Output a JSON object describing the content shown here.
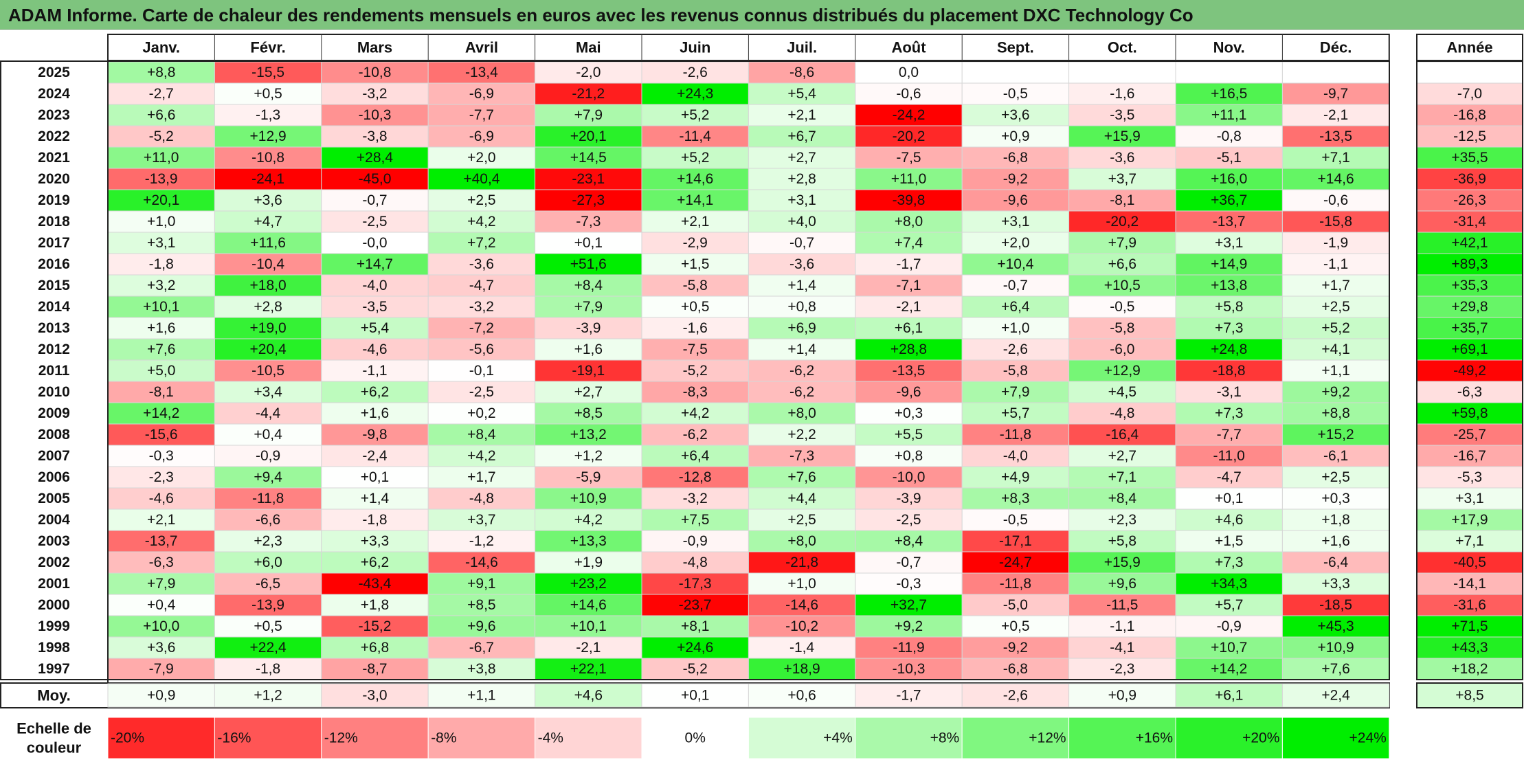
{
  "title": "ADAM Informe. Carte de chaleur des rendements mensuels en euros avec les revenus connus distribués du placement DXC Technology Co",
  "colors": {
    "title_bar": "#7ec47e",
    "negative_strong": "#ff0000",
    "neutral": "#ffffff",
    "positive_strong": "#00ee00"
  },
  "chart_data": {
    "type": "heatmap",
    "title": "ADAM Informe. Carte de chaleur des rendements mensuels en euros avec les revenus connus distribués du placement DXC Technology Co",
    "columns": [
      "Janv.",
      "Févr.",
      "Mars",
      "Avril",
      "Mai",
      "Juin",
      "Juil.",
      "Août",
      "Sept.",
      "Oct.",
      "Nov.",
      "Déc."
    ],
    "year_column_label": "Année",
    "rows": [
      {
        "year": "2025",
        "months": [
          "+8,8",
          "-15,5",
          "-10,8",
          "-13,4",
          "-2,0",
          "-2,6",
          "-8,6",
          "0,0",
          "",
          "",
          "",
          ""
        ],
        "annual": ""
      },
      {
        "year": "2024",
        "months": [
          "-2,7",
          "+0,5",
          "-3,2",
          "-6,9",
          "-21,2",
          "+24,3",
          "+5,4",
          "-0,6",
          "-0,5",
          "-1,6",
          "+16,5",
          "-9,7"
        ],
        "annual": "-7,0"
      },
      {
        "year": "2023",
        "months": [
          "+6,6",
          "-1,3",
          "-10,3",
          "-7,7",
          "+7,9",
          "+5,2",
          "+2,1",
          "-24,2",
          "+3,6",
          "-3,5",
          "+11,1",
          "-2,1"
        ],
        "annual": "-16,8"
      },
      {
        "year": "2022",
        "months": [
          "-5,2",
          "+12,9",
          "-3,8",
          "-6,9",
          "+20,1",
          "-11,4",
          "+6,7",
          "-20,2",
          "+0,9",
          "+15,9",
          "-0,8",
          "-13,5"
        ],
        "annual": "-12,5"
      },
      {
        "year": "2021",
        "months": [
          "+11,0",
          "-10,8",
          "+28,4",
          "+2,0",
          "+14,5",
          "+5,2",
          "+2,7",
          "-7,5",
          "-6,8",
          "-3,6",
          "-5,1",
          "+7,1"
        ],
        "annual": "+35,5"
      },
      {
        "year": "2020",
        "months": [
          "-13,9",
          "-24,1",
          "-45,0",
          "+40,4",
          "-23,1",
          "+14,6",
          "+2,8",
          "+11,0",
          "-9,2",
          "+3,7",
          "+16,0",
          "+14,6"
        ],
        "annual": "-36,9"
      },
      {
        "year": "2019",
        "months": [
          "+20,1",
          "+3,6",
          "-0,7",
          "+2,5",
          "-27,3",
          "+14,1",
          "+3,1",
          "-39,8",
          "-9,6",
          "-8,1",
          "+36,7",
          "-0,6"
        ],
        "annual": "-26,3"
      },
      {
        "year": "2018",
        "months": [
          "+1,0",
          "+4,7",
          "-2,5",
          "+4,2",
          "-7,3",
          "+2,1",
          "+4,0",
          "+8,0",
          "+3,1",
          "-20,2",
          "-13,7",
          "-15,8"
        ],
        "annual": "-31,4"
      },
      {
        "year": "2017",
        "months": [
          "+3,1",
          "+11,6",
          "-0,0",
          "+7,2",
          "+0,1",
          "-2,9",
          "-0,7",
          "+7,4",
          "+2,0",
          "+7,9",
          "+3,1",
          "-1,9"
        ],
        "annual": "+42,1"
      },
      {
        "year": "2016",
        "months": [
          "-1,8",
          "-10,4",
          "+14,7",
          "-3,6",
          "+51,6",
          "+1,5",
          "-3,6",
          "-1,7",
          "+10,4",
          "+6,6",
          "+14,9",
          "-1,1"
        ],
        "annual": "+89,3"
      },
      {
        "year": "2015",
        "months": [
          "+3,2",
          "+18,0",
          "-4,0",
          "-4,7",
          "+8,4",
          "-5,8",
          "+1,4",
          "-7,1",
          "-0,7",
          "+10,5",
          "+13,8",
          "+1,7"
        ],
        "annual": "+35,3"
      },
      {
        "year": "2014",
        "months": [
          "+10,1",
          "+2,8",
          "-3,5",
          "-3,2",
          "+7,9",
          "+0,5",
          "+0,8",
          "-2,1",
          "+6,4",
          "-0,5",
          "+5,8",
          "+2,5"
        ],
        "annual": "+29,8"
      },
      {
        "year": "2013",
        "months": [
          "+1,6",
          "+19,0",
          "+5,4",
          "-7,2",
          "-3,9",
          "-1,6",
          "+6,9",
          "+6,1",
          "+1,0",
          "-5,8",
          "+7,3",
          "+5,2"
        ],
        "annual": "+35,7"
      },
      {
        "year": "2012",
        "months": [
          "+7,6",
          "+20,4",
          "-4,6",
          "-5,6",
          "+1,6",
          "-7,5",
          "+1,4",
          "+28,8",
          "-2,6",
          "-6,0",
          "+24,8",
          "+4,1"
        ],
        "annual": "+69,1"
      },
      {
        "year": "2011",
        "months": [
          "+5,0",
          "-10,5",
          "-1,1",
          "-0,1",
          "-19,1",
          "-5,2",
          "-6,2",
          "-13,5",
          "-5,8",
          "+12,9",
          "-18,8",
          "+1,1"
        ],
        "annual": "-49,2"
      },
      {
        "year": "2010",
        "months": [
          "-8,1",
          "+3,4",
          "+6,2",
          "-2,5",
          "+2,7",
          "-8,3",
          "-6,2",
          "-9,6",
          "+7,9",
          "+4,5",
          "-3,1",
          "+9,2"
        ],
        "annual": "-6,3"
      },
      {
        "year": "2009",
        "months": [
          "+14,2",
          "-4,4",
          "+1,6",
          "+0,2",
          "+8,5",
          "+4,2",
          "+8,0",
          "+0,3",
          "+5,7",
          "-4,8",
          "+7,3",
          "+8,8"
        ],
        "annual": "+59,8"
      },
      {
        "year": "2008",
        "months": [
          "-15,6",
          "+0,4",
          "-9,8",
          "+8,4",
          "+13,2",
          "-6,2",
          "+2,2",
          "+5,5",
          "-11,8",
          "-16,4",
          "-7,7",
          "+15,2"
        ],
        "annual": "-25,7"
      },
      {
        "year": "2007",
        "months": [
          "-0,3",
          "-0,9",
          "-2,4",
          "+4,2",
          "+1,2",
          "+6,4",
          "-7,3",
          "+0,8",
          "-4,0",
          "+2,7",
          "-11,0",
          "-6,1"
        ],
        "annual": "-16,7"
      },
      {
        "year": "2006",
        "months": [
          "-2,3",
          "+9,4",
          "+0,1",
          "+1,7",
          "-5,9",
          "-12,8",
          "+7,6",
          "-10,0",
          "+4,9",
          "+7,1",
          "-4,7",
          "+2,5"
        ],
        "annual": "-5,3"
      },
      {
        "year": "2005",
        "months": [
          "-4,6",
          "-11,8",
          "+1,4",
          "-4,8",
          "+10,9",
          "-3,2",
          "+4,4",
          "-3,9",
          "+8,3",
          "+8,4",
          "+0,1",
          "+0,3"
        ],
        "annual": "+3,1"
      },
      {
        "year": "2004",
        "months": [
          "+2,1",
          "-6,6",
          "-1,8",
          "+3,7",
          "+4,2",
          "+7,5",
          "+2,5",
          "-2,5",
          "-0,5",
          "+2,3",
          "+4,6",
          "+1,8"
        ],
        "annual": "+17,9"
      },
      {
        "year": "2003",
        "months": [
          "-13,7",
          "+2,3",
          "+3,3",
          "-1,2",
          "+13,3",
          "-0,9",
          "+8,0",
          "+8,4",
          "-17,1",
          "+5,8",
          "+1,5",
          "+1,6"
        ],
        "annual": "+7,1"
      },
      {
        "year": "2002",
        "months": [
          "-6,3",
          "+6,0",
          "+6,2",
          "-14,6",
          "+1,9",
          "-4,8",
          "-21,8",
          "-0,7",
          "-24,7",
          "+15,9",
          "+7,3",
          "-6,4"
        ],
        "annual": "-40,5"
      },
      {
        "year": "2001",
        "months": [
          "+7,9",
          "-6,5",
          "-43,4",
          "+9,1",
          "+23,2",
          "-17,3",
          "+1,0",
          "-0,3",
          "-11,8",
          "+9,6",
          "+34,3",
          "+3,3"
        ],
        "annual": "-14,1"
      },
      {
        "year": "2000",
        "months": [
          "+0,4",
          "-13,9",
          "+1,8",
          "+8,5",
          "+14,6",
          "-23,7",
          "-14,6",
          "+32,7",
          "-5,0",
          "-11,5",
          "+5,7",
          "-18,5"
        ],
        "annual": "-31,6"
      },
      {
        "year": "1999",
        "months": [
          "+10,0",
          "+0,5",
          "-15,2",
          "+9,6",
          "+10,1",
          "+8,1",
          "-10,2",
          "+9,2",
          "+0,5",
          "-1,1",
          "-0,9",
          "+45,3"
        ],
        "annual": "+71,5"
      },
      {
        "year": "1998",
        "months": [
          "+3,6",
          "+22,4",
          "+6,8",
          "-6,7",
          "-2,1",
          "+24,6",
          "-1,4",
          "-11,9",
          "-9,2",
          "-4,1",
          "+10,7",
          "+10,9"
        ],
        "annual": "+43,3"
      },
      {
        "year": "1997",
        "months": [
          "-7,9",
          "-1,8",
          "-8,7",
          "+3,8",
          "+22,1",
          "-5,2",
          "+18,9",
          "-10,3",
          "-6,8",
          "-2,3",
          "+14,2",
          "+7,6"
        ],
        "annual": "+18,2"
      }
    ],
    "average": {
      "label": "Moy.",
      "months": [
        "+0,9",
        "+1,2",
        "-3,0",
        "+1,1",
        "+4,6",
        "+0,1",
        "+0,6",
        "-1,7",
        "-2,6",
        "+0,9",
        "+6,1",
        "+2,4"
      ],
      "annual": "+8,5"
    },
    "scale": {
      "label": "Echelle de couleur",
      "stops": [
        "-20%",
        "-16%",
        "-12%",
        "-8%",
        "-4%",
        "0%",
        "+4%",
        "+8%",
        "+12%",
        "+16%",
        "+20%",
        "+24%"
      ]
    }
  }
}
